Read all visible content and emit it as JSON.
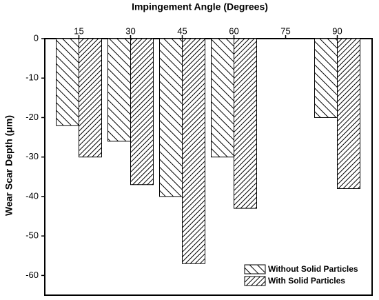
{
  "chart_data": {
    "type": "bar",
    "x_label": "Impingement Angle (Degrees)",
    "y_label": "Wear Scar Depth (μm)",
    "categories": [
      "15",
      "30",
      "45",
      "60",
      "75",
      "90"
    ],
    "series": [
      {
        "name": "Without Solid Particles",
        "color": "#000000",
        "hatch": "back-diagonal",
        "values": [
          -22,
          -26,
          -40,
          -30,
          null,
          -20
        ]
      },
      {
        "name": "With Solid Particles",
        "color": "#000000",
        "hatch": "forward-diagonal",
        "values": [
          -30,
          -37,
          -57,
          -43,
          null,
          -38
        ]
      }
    ],
    "ylim": [
      -65,
      0
    ],
    "yticks": [
      0,
      -10,
      -20,
      -30,
      -40,
      -50,
      -60
    ],
    "x_axis_position": "top",
    "legend": "lower right",
    "grid": false
  }
}
